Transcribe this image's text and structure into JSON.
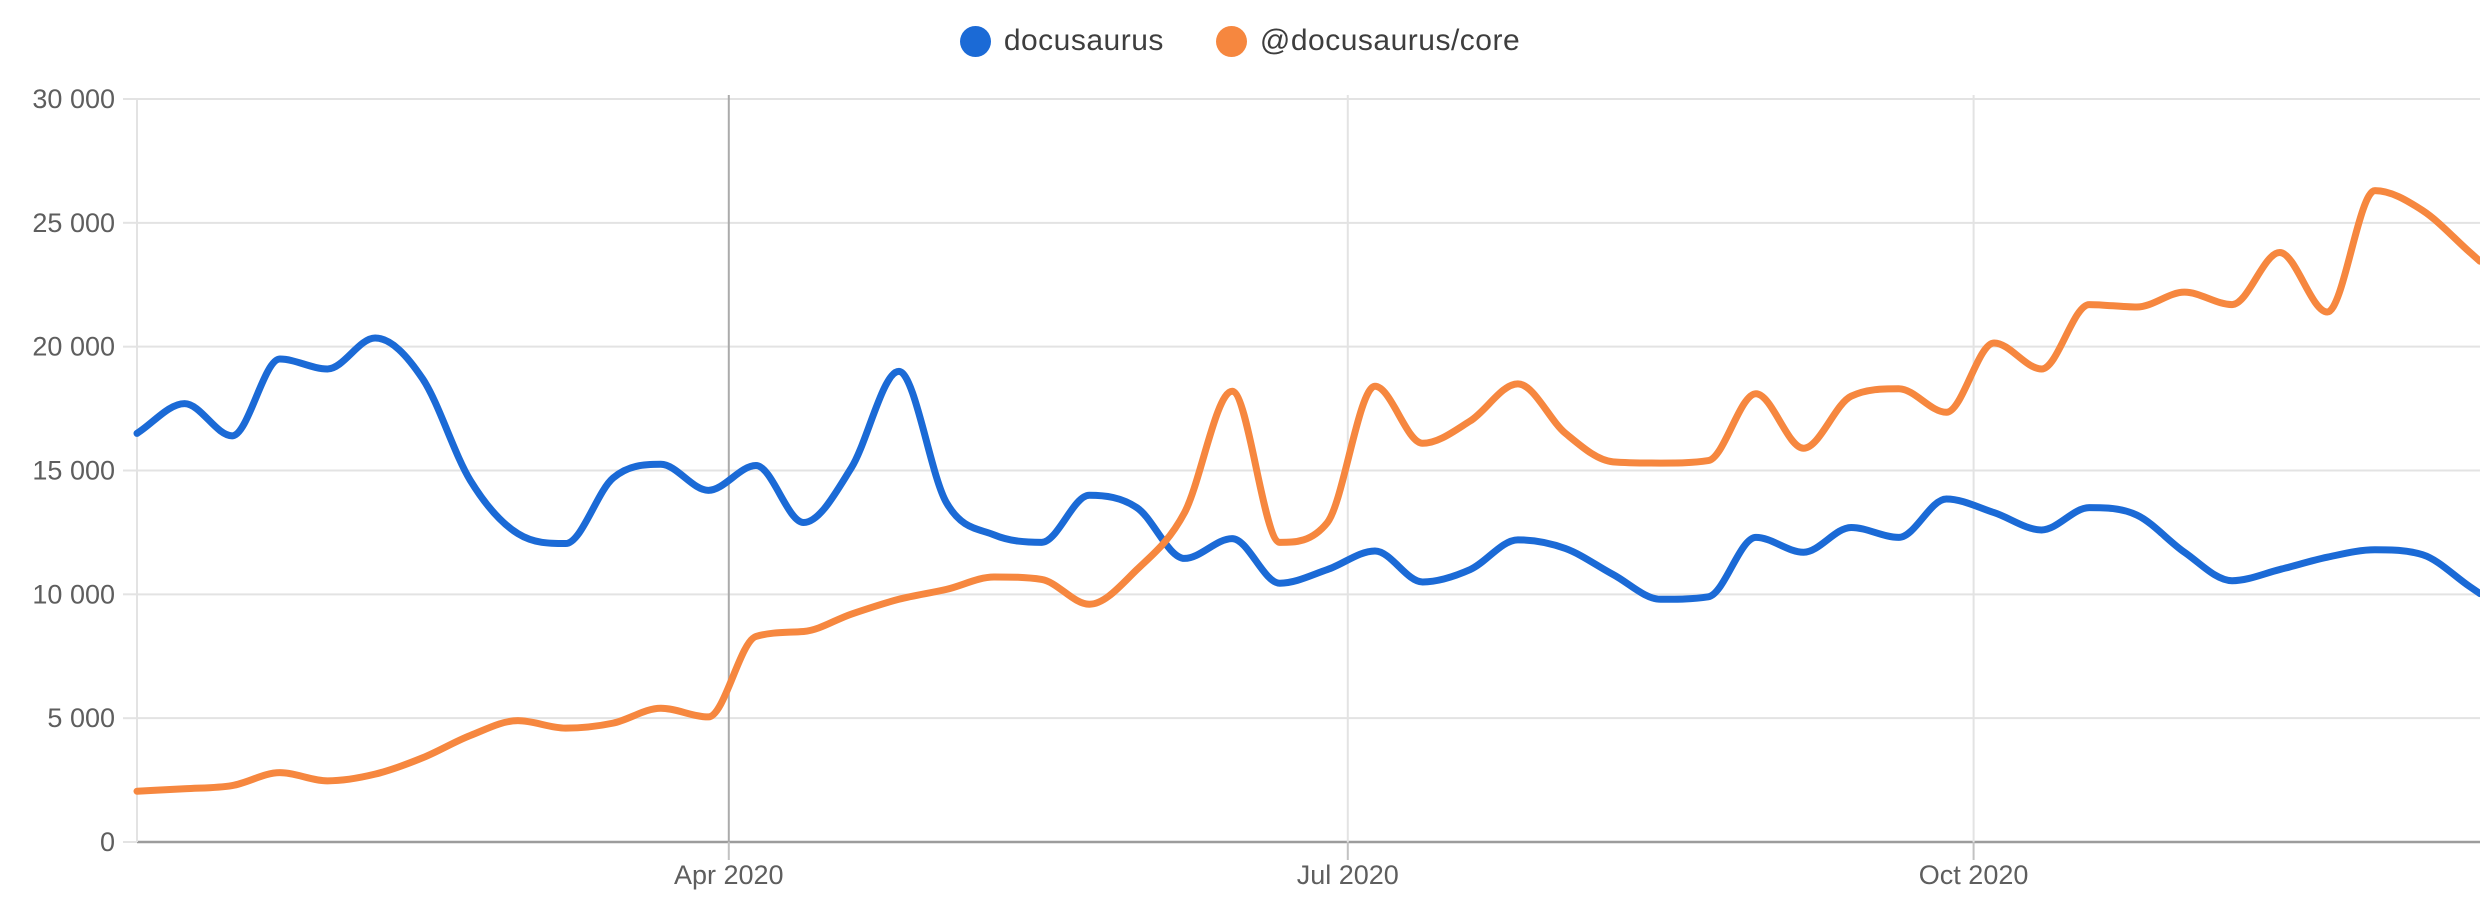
{
  "legend": {
    "items": [
      {
        "label": "docusaurus",
        "color": "#1b6ad6"
      },
      {
        "label": "@docusaurus/core",
        "color": "#f6873f"
      }
    ]
  },
  "chart_data": {
    "type": "line",
    "title": "",
    "xlabel": "",
    "ylabel": "",
    "legend_position": "top-center",
    "grid": true,
    "ylim": [
      0,
      30000
    ],
    "y_ticks": [
      {
        "value": 0,
        "label": "0"
      },
      {
        "value": 5000,
        "label": "5 000"
      },
      {
        "value": 10000,
        "label": "10 000"
      },
      {
        "value": 15000,
        "label": "15 000"
      },
      {
        "value": 20000,
        "label": "20 000"
      },
      {
        "value": 25000,
        "label": "25 000"
      },
      {
        "value": 30000,
        "label": "30 000"
      }
    ],
    "x_ticks": [
      {
        "label": "Apr 2020",
        "day": 87,
        "emphasis": true
      },
      {
        "label": "Jul 2020",
        "day": 178,
        "emphasis": false
      },
      {
        "label": "Oct 2020",
        "day": 270,
        "emphasis": false
      }
    ],
    "x_weekly_dates": [
      "2020-01-05",
      "2020-01-12",
      "2020-01-19",
      "2020-01-26",
      "2020-02-02",
      "2020-02-09",
      "2020-02-16",
      "2020-02-23",
      "2020-03-01",
      "2020-03-08",
      "2020-03-15",
      "2020-03-22",
      "2020-03-29",
      "2020-04-05",
      "2020-04-12",
      "2020-04-19",
      "2020-04-26",
      "2020-05-03",
      "2020-05-10",
      "2020-05-17",
      "2020-05-24",
      "2020-05-31",
      "2020-06-07",
      "2020-06-14",
      "2020-06-21",
      "2020-06-28",
      "2020-07-05",
      "2020-07-12",
      "2020-07-19",
      "2020-07-26",
      "2020-08-02",
      "2020-08-09",
      "2020-08-16",
      "2020-08-23",
      "2020-08-30",
      "2020-09-06",
      "2020-09-13",
      "2020-09-20",
      "2020-09-27",
      "2020-10-04",
      "2020-10-11",
      "2020-10-18",
      "2020-10-25",
      "2020-11-01",
      "2020-11-08",
      "2020-11-15",
      "2020-11-22",
      "2020-11-29",
      "2020-12-06",
      "2020-12-13"
    ],
    "week_step_days": 7,
    "series": [
      {
        "name": "docusaurus",
        "color": "#1b6ad6",
        "values": [
          16500,
          17700,
          16400,
          19500,
          19100,
          20350,
          18700,
          14600,
          12450,
          12050,
          14700,
          15250,
          14200,
          15200,
          12900,
          15100,
          19000,
          13700,
          12400,
          12100,
          14000,
          13500,
          11450,
          12250,
          10450,
          11000,
          11750,
          10500,
          11000,
          12200,
          11850,
          10800,
          9800,
          9900,
          12300,
          11700,
          12700,
          12300,
          13850,
          13300,
          12600,
          13500,
          13200,
          11700,
          10550,
          11000,
          11500,
          11800,
          11600,
          10300
        ]
      },
      {
        "name": "@docusaurus/core",
        "color": "#f6873f",
        "values": [
          2050,
          2150,
          2280,
          2800,
          2470,
          2740,
          3400,
          4300,
          4900,
          4600,
          4800,
          5400,
          5050,
          8300,
          8500,
          9200,
          9800,
          10200,
          10700,
          10600,
          9600,
          11000,
          13300,
          18200,
          12100,
          12900,
          18400,
          16100,
          17000,
          18500,
          16500,
          15350,
          15300,
          15400,
          18100,
          15900,
          18000,
          18300,
          17350,
          20150,
          19100,
          21700,
          21600,
          22200,
          21700,
          23800,
          21400,
          26300,
          25500,
          23800
        ]
      }
    ],
    "colors": {
      "gridline": "#e3e3e3",
      "axis_bottom": "#9c9c9c",
      "vline_apr": "#ababab",
      "tick_stub": "#c2c2c2",
      "label_text": "#5e5e5e"
    }
  }
}
